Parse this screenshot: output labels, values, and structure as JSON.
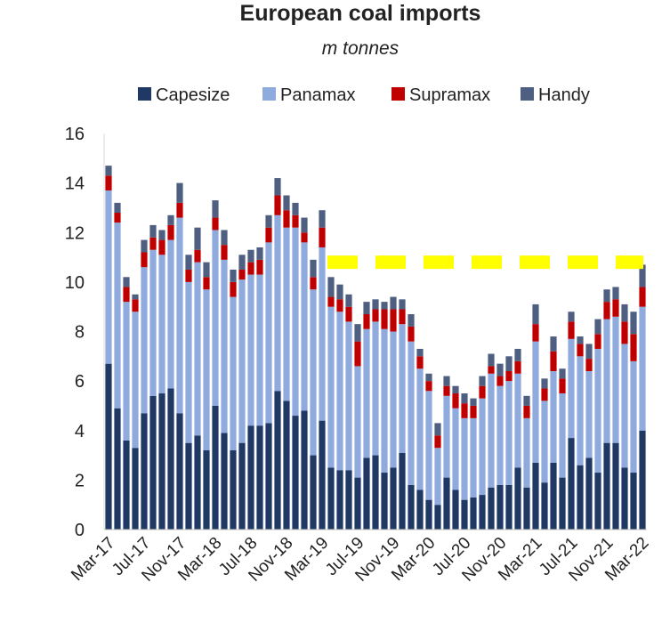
{
  "chart_data": {
    "type": "bar",
    "stacked": true,
    "title": "European coal imports",
    "subtitle": "m tonnes",
    "ylim": [
      0,
      16
    ],
    "yticks": [
      0,
      2,
      4,
      6,
      8,
      10,
      12,
      14,
      16
    ],
    "grid": false,
    "legend_position": "top",
    "x_tick_labels": [
      "Mar-17",
      "Jul-17",
      "Nov-17",
      "Mar-18",
      "Jul-18",
      "Nov-18",
      "Mar-19",
      "Jul-19",
      "Nov-19",
      "Mar-20",
      "Jul-20",
      "Nov-20",
      "Mar-21",
      "Jul-21",
      "Nov-21",
      "Mar-22"
    ],
    "categories": [
      "Mar-17",
      "Apr-17",
      "May-17",
      "Jun-17",
      "Jul-17",
      "Aug-17",
      "Sep-17",
      "Oct-17",
      "Nov-17",
      "Dec-17",
      "Jan-18",
      "Feb-18",
      "Mar-18",
      "Apr-18",
      "May-18",
      "Jun-18",
      "Jul-18",
      "Aug-18",
      "Sep-18",
      "Oct-18",
      "Nov-18",
      "Dec-18",
      "Jan-19",
      "Feb-19",
      "Mar-19",
      "Apr-19",
      "May-19",
      "Jun-19",
      "Jul-19",
      "Aug-19",
      "Sep-19",
      "Oct-19",
      "Nov-19",
      "Dec-19",
      "Jan-20",
      "Feb-20",
      "Mar-20",
      "Apr-20",
      "May-20",
      "Jun-20",
      "Jul-20",
      "Aug-20",
      "Sep-20",
      "Oct-20",
      "Nov-20",
      "Dec-20",
      "Jan-21",
      "Feb-21",
      "Mar-21",
      "Apr-21",
      "May-21",
      "Jun-21",
      "Jul-21",
      "Aug-21",
      "Sep-21",
      "Oct-21",
      "Nov-21",
      "Dec-21",
      "Jan-22",
      "Feb-22",
      "Mar-22"
    ],
    "series": [
      {
        "name": "Capesize",
        "color": "#1f3864",
        "values": [
          6.7,
          4.9,
          3.6,
          3.3,
          4.7,
          5.4,
          5.5,
          5.7,
          4.7,
          3.5,
          3.8,
          3.2,
          5.0,
          3.9,
          3.2,
          3.5,
          4.2,
          4.2,
          4.3,
          5.6,
          5.2,
          4.6,
          4.8,
          3.0,
          4.4,
          2.5,
          2.4,
          2.4,
          2.1,
          2.9,
          3.0,
          2.3,
          2.5,
          3.1,
          1.8,
          1.6,
          1.2,
          1.0,
          2.1,
          1.6,
          1.2,
          1.3,
          1.4,
          1.7,
          1.8,
          1.8,
          2.5,
          1.7,
          2.7,
          1.9,
          2.7,
          2.1,
          3.7,
          2.6,
          2.9,
          2.3,
          3.5,
          3.5,
          2.5,
          2.3,
          4.0
        ]
      },
      {
        "name": "Panamax",
        "color": "#8faadc",
        "values": [
          7.0,
          7.5,
          5.6,
          5.5,
          5.9,
          5.9,
          5.6,
          6.0,
          7.9,
          6.5,
          7.0,
          6.5,
          7.1,
          7.0,
          6.2,
          6.6,
          6.1,
          6.1,
          7.3,
          7.1,
          7.0,
          7.6,
          6.8,
          6.7,
          7.0,
          6.5,
          6.4,
          6.0,
          4.5,
          5.2,
          5.4,
          5.8,
          5.5,
          5.2,
          5.8,
          4.9,
          4.4,
          2.3,
          3.3,
          3.3,
          3.3,
          3.2,
          3.9,
          4.6,
          4.0,
          4.2,
          3.8,
          2.8,
          4.9,
          3.3,
          3.7,
          3.4,
          4.0,
          4.4,
          3.5,
          5.0,
          5.0,
          5.1,
          5.0,
          4.5,
          5.0
        ]
      },
      {
        "name": "Supramax",
        "color": "#c00000",
        "values": [
          0.6,
          0.4,
          0.6,
          0.5,
          0.6,
          0.5,
          0.6,
          0.6,
          0.6,
          0.5,
          0.5,
          0.5,
          0.5,
          0.6,
          0.6,
          0.4,
          0.5,
          0.6,
          0.6,
          0.8,
          0.7,
          0.5,
          0.4,
          0.5,
          0.8,
          0.4,
          0.5,
          0.6,
          1.0,
          0.6,
          0.5,
          0.8,
          0.9,
          0.6,
          0.6,
          0.5,
          0.4,
          0.5,
          0.4,
          0.6,
          0.6,
          0.5,
          0.5,
          0.3,
          0.4,
          0.4,
          0.5,
          0.5,
          0.7,
          0.5,
          0.8,
          0.6,
          0.7,
          0.5,
          0.5,
          0.6,
          0.7,
          0.7,
          0.9,
          1.1,
          0.8
        ]
      },
      {
        "name": "Handy",
        "color": "#4f5f82",
        "values": [
          0.4,
          0.4,
          0.4,
          0.2,
          0.5,
          0.5,
          0.4,
          0.4,
          0.8,
          0.6,
          0.9,
          0.6,
          0.7,
          0.6,
          0.5,
          0.6,
          0.5,
          0.5,
          0.5,
          0.7,
          0.6,
          0.5,
          0.6,
          0.7,
          0.7,
          0.8,
          0.6,
          0.5,
          0.7,
          0.5,
          0.4,
          0.3,
          0.5,
          0.4,
          0.5,
          0.3,
          0.3,
          0.5,
          0.4,
          0.3,
          0.4,
          0.3,
          0.4,
          0.5,
          0.5,
          0.6,
          0.5,
          0.4,
          0.8,
          0.4,
          0.6,
          0.4,
          0.4,
          0.3,
          0.6,
          0.6,
          0.5,
          0.5,
          0.7,
          0.9,
          0.9
        ]
      }
    ],
    "highlight_band": {
      "value": 10.8,
      "style": "dashed",
      "color": "#ffff00"
    }
  }
}
